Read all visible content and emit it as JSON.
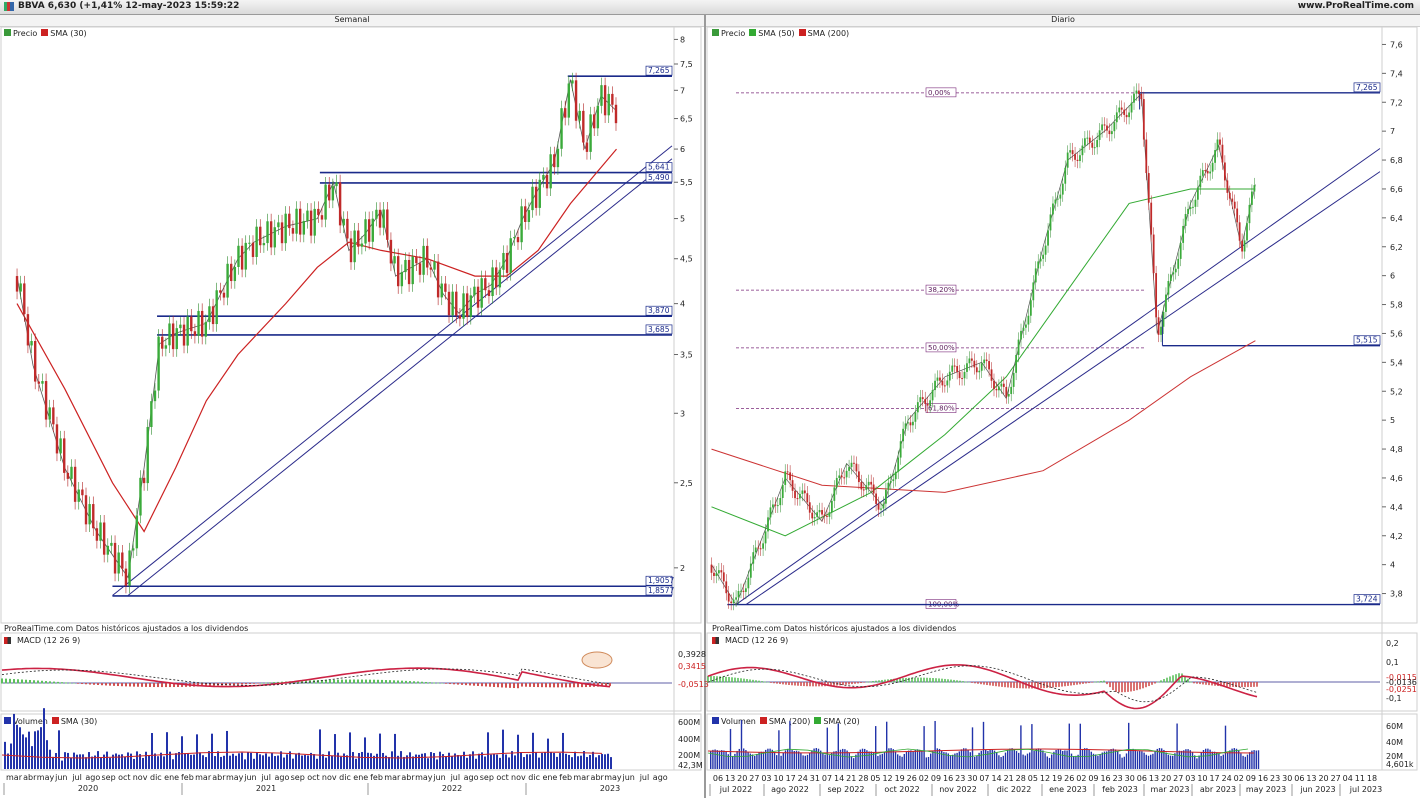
{
  "header": {
    "ticker_line": "BBVA 6,630 (+1,41% 12-may-2023 15:59:22",
    "site": "www.ProRealTime.com"
  },
  "left_panel": {
    "title": "Semanal",
    "legend": [
      {
        "label": "Precio",
        "color": "#3a9a3a"
      },
      {
        "label": "SMA (30)",
        "color": "#cc2222"
      }
    ],
    "source_note": "ProRealTime.com Datos históricos ajustados a los dividendos",
    "y_ticks": [
      "8",
      "7,5",
      "7",
      "6,5",
      "6",
      "5,5",
      "5",
      "4,5",
      "4",
      "3,5",
      "3",
      "2,5",
      "2"
    ],
    "levels": [
      {
        "label": "7,265",
        "value": 7.265
      },
      {
        "label": "5,641",
        "value": 5.641
      },
      {
        "label": "5,490",
        "value": 5.49
      },
      {
        "label": "3,870",
        "value": 3.87
      },
      {
        "label": "3,685",
        "value": 3.685
      },
      {
        "label": "1,9057",
        "value": 1.9057
      },
      {
        "label": "1,8577",
        "value": 1.8577
      }
    ],
    "macd": {
      "legend": "MACD (12 26 9)",
      "ticks": [
        "0,3928",
        "0,3415",
        "-0,0513"
      ]
    },
    "volume": {
      "legend": [
        {
          "label": "Volumen",
          "color": "#2233aa"
        },
        {
          "label": "SMA (30)",
          "color": "#cc2222"
        }
      ],
      "ticks": [
        "600M",
        "400M",
        "200M",
        "42,3M"
      ]
    },
    "x_months": [
      "mar",
      "abr",
      "may",
      "jun",
      "jul",
      "ago",
      "sep",
      "oct",
      "nov",
      "dic",
      "ene",
      "feb",
      "mar",
      "abr",
      "may",
      "jun",
      "jul",
      "ago",
      "sep",
      "oct",
      "nov",
      "dic",
      "ene",
      "feb",
      "mar",
      "abr",
      "may",
      "jun",
      "jul",
      "ago",
      "sep",
      "oct",
      "nov",
      "dic",
      "ene",
      "feb",
      "mar",
      "abr",
      "may",
      "jun",
      "jul",
      "ago"
    ],
    "x_years": [
      "2020",
      "2021",
      "2022",
      "2023"
    ]
  },
  "right_panel": {
    "title": "Diario",
    "legend": [
      {
        "label": "Precio",
        "color": "#3a9a3a"
      },
      {
        "label": "SMA (50)",
        "color": "#33aa33"
      },
      {
        "label": "SMA (200)",
        "color": "#cc2222"
      }
    ],
    "source_note": "ProRealTime.com Datos históricos ajustados a los dividendos",
    "y_ticks": [
      "7,6",
      "7,4",
      "7,2",
      "7",
      "6,8",
      "6,6",
      "6,4",
      "6,2",
      "6",
      "5,8",
      "5,6",
      "5,4",
      "5,2",
      "5",
      "4,8",
      "4,6",
      "4,4",
      "4,2",
      "4",
      "3,8"
    ],
    "levels": [
      {
        "label": "7,265",
        "value": 7.265
      },
      {
        "label": "5,515",
        "value": 5.515
      },
      {
        "label": "3,724",
        "value": 3.724
      }
    ],
    "fibonacci": [
      "0,00%",
      "38,20%",
      "50,00%",
      "61,80%",
      "100,00%"
    ],
    "macd": {
      "legend": "MACD (12 26 9)",
      "ticks": [
        "0,2",
        "0,1",
        "-0,0115",
        "-0,0136",
        "-0,0251",
        "-0,1"
      ]
    },
    "volume": {
      "legend": [
        {
          "label": "Volumen",
          "color": "#2233aa"
        },
        {
          "label": "SMA (200)",
          "color": "#cc2222"
        },
        {
          "label": "SMA (20)",
          "color": "#33aa33"
        }
      ],
      "ticks": [
        "60M",
        "40M",
        "20M",
        "4,601k"
      ]
    },
    "x_days": [
      "06",
      "13",
      "20",
      "27",
      "03",
      "10",
      "17",
      "24",
      "31",
      "07",
      "14",
      "21",
      "28",
      "05",
      "12",
      "19",
      "26",
      "02",
      "09",
      "16",
      "23",
      "30",
      "07",
      "14",
      "21",
      "28",
      "05",
      "12",
      "19",
      "26",
      "02",
      "09",
      "16",
      "23",
      "30",
      "06",
      "13",
      "20",
      "27",
      "03",
      "10",
      "17",
      "24",
      "02",
      "09",
      "16",
      "23",
      "30",
      "06",
      "13",
      "20",
      "27",
      "04",
      "11",
      "18"
    ],
    "x_months": [
      "jul 2022",
      "ago 2022",
      "sep 2022",
      "oct 2022",
      "nov 2022",
      "dic 2022",
      "ene 2023",
      "feb 2023",
      "mar 2023",
      "abr 2023",
      "may 2023",
      "jun 2023",
      "jul 2023"
    ]
  },
  "chart_data": [
    {
      "type": "line",
      "title": "Semanal",
      "series": [
        {
          "name": "Precio",
          "x": [
            "2020-03",
            "2020-04",
            "2020-06",
            "2020-08",
            "2020-10",
            "2020-11",
            "2020-12",
            "2021-01",
            "2021-03",
            "2021-05",
            "2021-06",
            "2021-08",
            "2021-10",
            "2021-11",
            "2021-12",
            "2022-01",
            "2022-02",
            "2022-03",
            "2022-05",
            "2022-06",
            "2022-07",
            "2022-08",
            "2022-09",
            "2022-10",
            "2022-11",
            "2022-12",
            "2023-01",
            "2023-02",
            "2023-03",
            "2023-04",
            "2023-05"
          ],
          "values": [
            4.3,
            3.4,
            2.6,
            2.2,
            1.95,
            2.6,
            3.6,
            3.7,
            3.8,
            4.5,
            4.7,
            4.9,
            5.0,
            5.5,
            4.6,
            4.8,
            5.1,
            4.3,
            4.5,
            4.1,
            3.9,
            4.1,
            4.2,
            4.5,
            5.0,
            5.4,
            5.8,
            7.2,
            6.0,
            6.9,
            6.63
          ]
        },
        {
          "name": "SMA (30)",
          "x": [
            "2020-03",
            "2020-06",
            "2020-09",
            "2020-11",
            "2021-01",
            "2021-03",
            "2021-05",
            "2021-08",
            "2021-10",
            "2021-12",
            "2022-02",
            "2022-05",
            "2022-08",
            "2022-10",
            "2022-12",
            "2023-02",
            "2023-05"
          ],
          "values": [
            4.0,
            3.2,
            2.5,
            2.2,
            2.6,
            3.1,
            3.5,
            4.0,
            4.4,
            4.7,
            4.6,
            4.5,
            4.3,
            4.3,
            4.6,
            5.2,
            6.0
          ]
        }
      ],
      "ylim": [
        1.8,
        8.2
      ],
      "levels": [
        7.265,
        5.641,
        5.49,
        3.87,
        3.685,
        1.9057,
        1.8577
      ],
      "scale": "log"
    },
    {
      "type": "line",
      "title": "Diario",
      "series": [
        {
          "name": "Precio",
          "x": [
            "2022-07-06",
            "2022-07-20",
            "2022-08-17",
            "2022-09-07",
            "2022-09-21",
            "2022-10-12",
            "2022-10-26",
            "2022-11-16",
            "2022-12-07",
            "2022-12-21",
            "2023-01-11",
            "2023-01-25",
            "2023-02-15",
            "2023-03-08",
            "2023-03-17",
            "2023-04-05",
            "2023-04-21",
            "2023-05-04",
            "2023-05-12"
          ],
          "values": [
            4.0,
            3.72,
            4.6,
            4.3,
            4.7,
            4.4,
            5.0,
            5.3,
            5.4,
            5.15,
            6.2,
            6.8,
            7.0,
            7.26,
            5.6,
            6.5,
            6.9,
            6.2,
            6.63
          ]
        },
        {
          "name": "SMA (50)",
          "x": [
            "2022-07-06",
            "2022-08-17",
            "2022-10-05",
            "2022-11-16",
            "2022-12-21",
            "2023-01-25",
            "2023-03-01",
            "2023-04-05",
            "2023-05-12"
          ],
          "values": [
            4.4,
            4.2,
            4.5,
            4.9,
            5.3,
            5.9,
            6.5,
            6.6,
            6.6
          ]
        },
        {
          "name": "SMA (200)",
          "x": [
            "2022-07-06",
            "2022-09-07",
            "2022-11-16",
            "2023-01-11",
            "2023-03-01",
            "2023-04-05",
            "2023-05-12"
          ],
          "values": [
            4.8,
            4.55,
            4.5,
            4.65,
            5.0,
            5.3,
            5.55
          ]
        }
      ],
      "ylim": [
        3.7,
        7.7
      ],
      "levels": [
        7.265,
        5.515,
        3.724
      ],
      "fibonacci_levels": {
        "0,00%": 7.265,
        "38,20%": 5.9,
        "50,00%": 5.5,
        "61,80%": 5.08,
        "100,00%": 3.724
      }
    }
  ]
}
